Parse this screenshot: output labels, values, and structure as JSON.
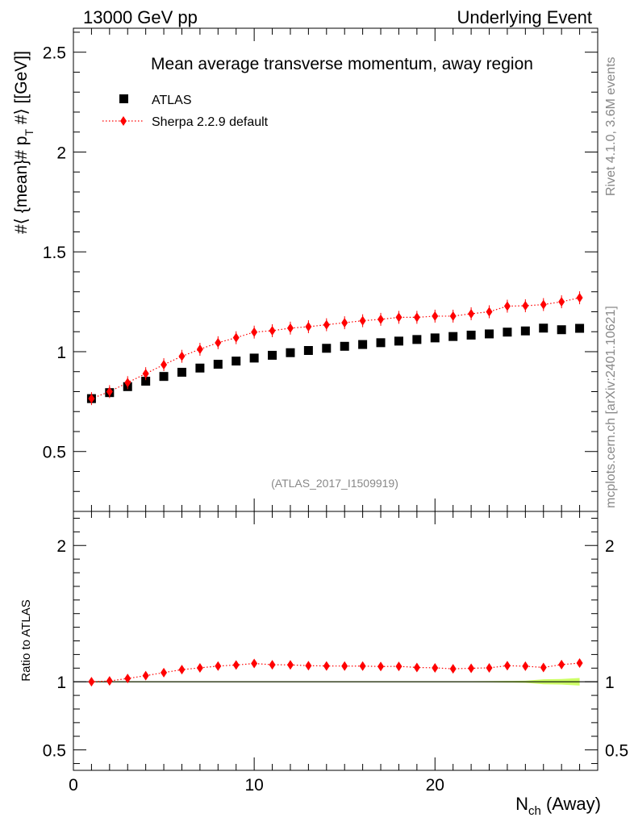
{
  "header": {
    "left": "13000 GeV pp",
    "right": "Underlying Event"
  },
  "side": {
    "rivet": "Rivet 4.1.0,  3.6M events",
    "mcplots": "mcplots.cern.ch [arXiv:2401.10621]"
  },
  "colors": {
    "data": "#000000",
    "mc": "#ff0000",
    "band": "#ccff66",
    "axis": "#000000",
    "label_grey": "#888888"
  },
  "chart_data": [
    {
      "type": "scatter",
      "title": "Mean average transverse momentum, away region",
      "ylabel": "#⟨ {mean}# p_T #⟩ [[GeV]]",
      "ylabel_parts": {
        "main": "#⟨ {mean}# p",
        "sub": "T",
        "tail": " #⟩ [[GeV]]"
      },
      "xlabel": "",
      "watermark": "(ATLAS_2017_I1509919)",
      "xlim": [
        0,
        29
      ],
      "ylim": [
        0.2,
        2.62
      ],
      "yticks": [
        0.5,
        1,
        1.5,
        2,
        2.5
      ],
      "ytick_labels": [
        "0.5",
        "1",
        "1.5",
        "2",
        "2.5"
      ],
      "legend": [
        "ATLAS",
        "Sherpa 2.2.9 default"
      ],
      "legend_position": "top-left",
      "series": [
        {
          "name": "ATLAS",
          "marker": "square",
          "x": [
            1,
            2,
            3,
            4,
            5,
            6,
            7,
            8,
            9,
            10,
            11,
            12,
            13,
            14,
            15,
            16,
            17,
            18,
            19,
            20,
            21,
            22,
            23,
            24,
            25,
            26,
            27,
            28
          ],
          "values": [
            0.765,
            0.795,
            0.825,
            0.852,
            0.876,
            0.897,
            0.918,
            0.937,
            0.953,
            0.968,
            0.982,
            0.995,
            1.006,
            1.017,
            1.027,
            1.036,
            1.045,
            1.053,
            1.061,
            1.069,
            1.076,
            1.083,
            1.089,
            1.098,
            1.104,
            1.118,
            1.11,
            1.117
          ]
        },
        {
          "name": "Sherpa 2.2.9 default",
          "marker": "diamond",
          "line": "dotted",
          "x": [
            1,
            2,
            3,
            4,
            5,
            6,
            7,
            8,
            9,
            10,
            11,
            12,
            13,
            14,
            15,
            16,
            17,
            18,
            19,
            20,
            21,
            22,
            23,
            24,
            25,
            26,
            27,
            28
          ],
          "values": [
            0.765,
            0.8,
            0.845,
            0.89,
            0.935,
            0.977,
            1.012,
            1.045,
            1.07,
            1.098,
            1.105,
            1.118,
            1.125,
            1.135,
            1.145,
            1.155,
            1.162,
            1.172,
            1.172,
            1.178,
            1.178,
            1.19,
            1.2,
            1.228,
            1.23,
            1.236,
            1.25,
            1.27
          ]
        }
      ]
    },
    {
      "type": "scatter",
      "title": "",
      "ylabel": "Ratio to ATLAS",
      "xlabel": "N_ch (Away)",
      "xlabel_parts": {
        "main": "N",
        "sub": "ch",
        "tail": " (Away)"
      },
      "xlim": [
        0,
        29
      ],
      "ylim": [
        0.35,
        2.25
      ],
      "xticks": [
        0,
        10,
        20
      ],
      "xtick_labels": [
        "0",
        "10",
        "20"
      ],
      "yticks": [
        0.5,
        1,
        2
      ],
      "ytick_labels": [
        "0.5",
        "1",
        "2"
      ],
      "reference_line": 1,
      "band": {
        "x": [
          1,
          2,
          3,
          4,
          5,
          6,
          7,
          8,
          9,
          10,
          11,
          12,
          13,
          14,
          15,
          16,
          17,
          18,
          19,
          20,
          21,
          22,
          23,
          24,
          25,
          26,
          27,
          28
        ],
        "halfwidth": [
          0.004,
          0.004,
          0.004,
          0.004,
          0.004,
          0.004,
          0.004,
          0.004,
          0.004,
          0.004,
          0.004,
          0.004,
          0.004,
          0.004,
          0.004,
          0.004,
          0.004,
          0.004,
          0.004,
          0.004,
          0.004,
          0.004,
          0.005,
          0.006,
          0.008,
          0.018,
          0.02,
          0.028
        ]
      },
      "series": [
        {
          "name": "Sherpa 2.2.9 default",
          "marker": "diamond",
          "line": "dotted",
          "x": [
            1,
            2,
            3,
            4,
            5,
            6,
            7,
            8,
            9,
            10,
            11,
            12,
            13,
            14,
            15,
            16,
            17,
            18,
            19,
            20,
            21,
            22,
            23,
            24,
            25,
            26,
            27,
            28
          ],
          "values": [
            1.0,
            1.006,
            1.024,
            1.045,
            1.067,
            1.089,
            1.102,
            1.115,
            1.123,
            1.134,
            1.125,
            1.124,
            1.118,
            1.116,
            1.115,
            1.115,
            1.112,
            1.113,
            1.105,
            1.102,
            1.095,
            1.099,
            1.102,
            1.118,
            1.114,
            1.105,
            1.126,
            1.137
          ]
        }
      ]
    }
  ]
}
